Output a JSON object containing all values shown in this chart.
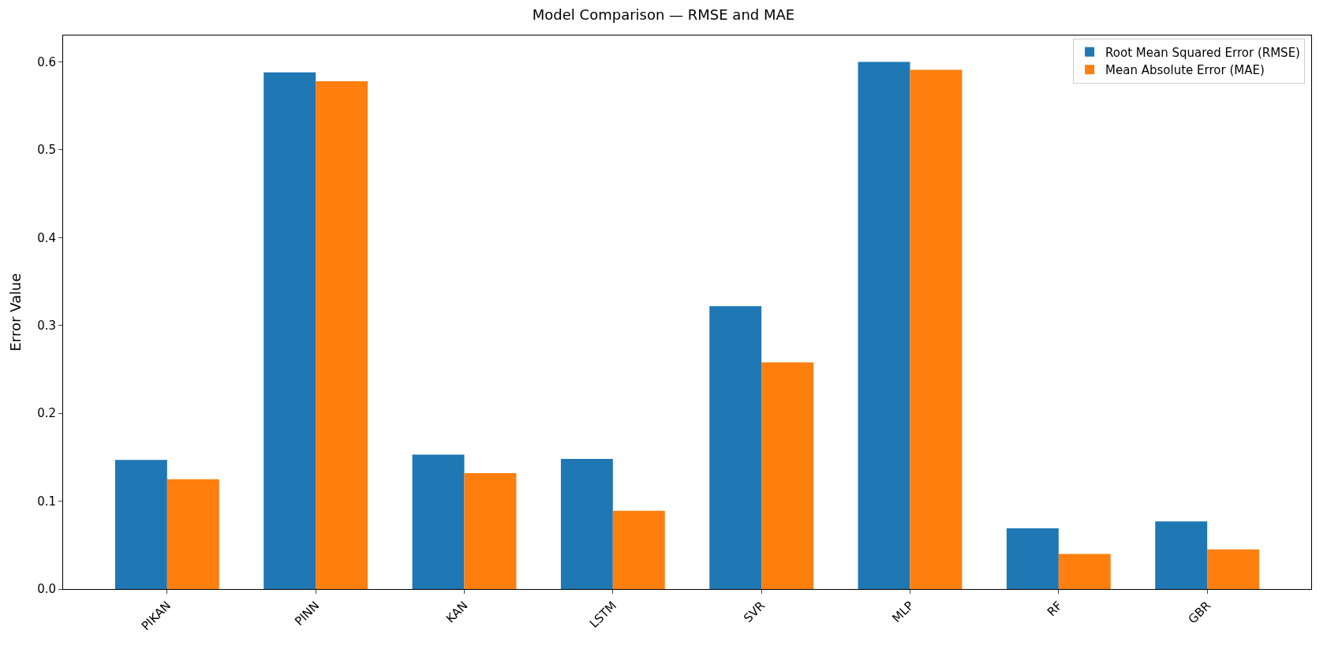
{
  "chart_data": {
    "type": "bar",
    "title": "Model Comparison — RMSE and MAE",
    "ylabel": "Error Value",
    "categories": [
      "PIKAN",
      "PINN",
      "KAN",
      "LSTM",
      "SVR",
      "MLP",
      "RF",
      "GBR"
    ],
    "series": [
      {
        "name": "Root Mean Squared Error (RMSE)",
        "color": "#1f77b4",
        "values": [
          0.147,
          0.588,
          0.153,
          0.148,
          0.322,
          0.6,
          0.069,
          0.077
        ]
      },
      {
        "name": "Mean Absolute Error (MAE)",
        "color": "#ff7f0e",
        "values": [
          0.125,
          0.578,
          0.132,
          0.089,
          0.258,
          0.591,
          0.04,
          0.045
        ]
      }
    ],
    "ylim": [
      0,
      0.63
    ],
    "yticks": [
      {
        "value": 0,
        "label": "0.0"
      },
      0.1,
      0.2,
      0.3,
      0.4,
      0.5,
      0.6
    ],
    "legend": "top right"
  }
}
